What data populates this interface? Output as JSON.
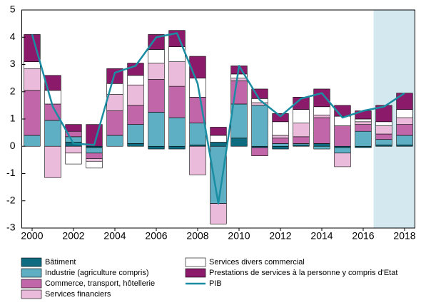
{
  "chart_data": {
    "type": "stacked-bar-line",
    "x": [
      2000,
      2001,
      2002,
      2003,
      2004,
      2005,
      2006,
      2007,
      2008,
      2009,
      2010,
      2011,
      2012,
      2013,
      2014,
      2015,
      2016,
      2017,
      2018
    ],
    "xlim": [
      1999.5,
      2018.5
    ],
    "xticks": [
      2000,
      2002,
      2004,
      2006,
      2008,
      2010,
      2012,
      2014,
      2016,
      2018
    ],
    "ylim": [
      -3,
      5
    ],
    "yticks": [
      -3,
      -2,
      -1,
      0,
      1,
      2,
      3,
      4,
      5
    ],
    "shade": {
      "x": [
        2017,
        2018
      ],
      "color": "#d3e8ef"
    },
    "series": [
      {
        "name": "Bâtiment",
        "kind": "bar",
        "color": "#0e6b80",
        "values": [
          0,
          0,
          0.15,
          -0.05,
          0,
          0.1,
          -0.1,
          -0.1,
          0.05,
          0.15,
          0.3,
          -0.05,
          -0.1,
          0.05,
          0.1,
          -0.05,
          -0.05,
          0.05,
          0.05
        ]
      },
      {
        "name": "Industrie (agriculture compris)",
        "kind": "bar",
        "color": "#5eafc3",
        "values": [
          0.4,
          0.95,
          0.2,
          -0.2,
          0.4,
          0.7,
          1.25,
          1.05,
          0.8,
          -2.1,
          1.25,
          1.5,
          0.1,
          0.05,
          -0.1,
          -0.2,
          0.55,
          0.2,
          0.35
        ]
      },
      {
        "name": "Commerce, transport, hôtellerie",
        "kind": "bar",
        "color": "#c166a9",
        "values": [
          1.65,
          0.6,
          0.2,
          -0.2,
          0.9,
          0.7,
          1.2,
          1.15,
          0.95,
          0,
          0.85,
          -0.3,
          0.2,
          0.25,
          0.95,
          0.75,
          0.25,
          0.2,
          0.4
        ]
      },
      {
        "name": "Services financiers",
        "kind": "bar",
        "color": "#ebbbdb",
        "values": [
          0.8,
          -1.15,
          -0.25,
          -0.1,
          0.6,
          0.75,
          0.6,
          0.9,
          -1.05,
          -0.75,
          0.1,
          0.1,
          0.1,
          0.5,
          0.1,
          -0.5,
          0.1,
          0.3,
          0.25
        ]
      },
      {
        "name": "Services divers commercial",
        "kind": "bar",
        "color": "#ffffff",
        "values": [
          0.25,
          0.5,
          -0.4,
          -0.25,
          0.4,
          0.35,
          0.5,
          0.55,
          0.7,
          0.25,
          0.15,
          0.15,
          0.5,
          0.5,
          0.3,
          0.35,
          0.1,
          0.15,
          0.3
        ]
      },
      {
        "name": "Prestations de services à la personne y compris d'Etat",
        "kind": "bar",
        "color": "#8c1a6b",
        "values": [
          1.0,
          0.55,
          0.25,
          0.8,
          0.55,
          0.45,
          0.55,
          0.6,
          0.8,
          0.3,
          0.3,
          0.35,
          0.3,
          0.45,
          0.65,
          0.4,
          0.3,
          0.6,
          0.6
        ]
      },
      {
        "name": "PIB",
        "kind": "line",
        "color": "#1b8da3",
        "values": [
          4.1,
          1.45,
          0.1,
          0.05,
          2.7,
          2.95,
          4.0,
          4.15,
          2.3,
          -2.1,
          2.95,
          1.7,
          1.1,
          1.75,
          1.95,
          1.05,
          1.3,
          1.45,
          1.95
        ]
      }
    ]
  }
}
